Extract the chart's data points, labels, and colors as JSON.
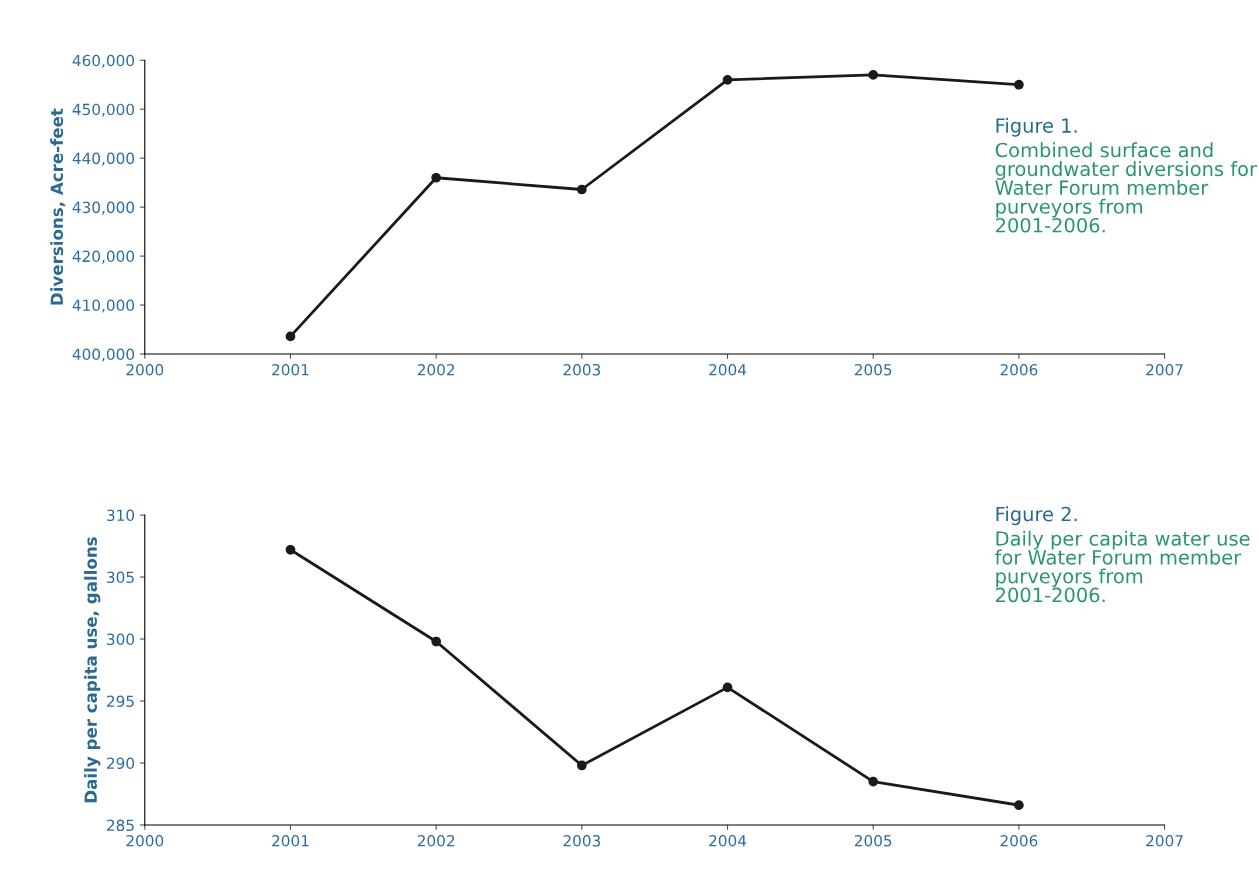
{
  "chart_data": [
    {
      "type": "line",
      "ylabel": "Diversions, Acre-feet",
      "x": [
        2001,
        2002,
        2003,
        2004,
        2005,
        2006
      ],
      "series": [
        {
          "color": "#1a1a1a",
          "values": [
            403600,
            436000,
            433600,
            456000,
            457000,
            455000
          ]
        }
      ],
      "marker": "circle",
      "line_style": "solid",
      "grid": false,
      "xlim": [
        2000,
        2007
      ],
      "xticks": [
        2000,
        2001,
        2002,
        2003,
        2004,
        2005,
        2006,
        2007
      ],
      "ylim": [
        400000,
        460000
      ],
      "yticks": [
        {
          "value": 400000,
          "label": "400,000"
        },
        {
          "value": 410000,
          "label": "410,000"
        },
        {
          "value": 420000,
          "label": "420,000"
        },
        {
          "value": 430000,
          "label": "430,000"
        },
        {
          "value": 440000,
          "label": "440,000"
        },
        {
          "value": 450000,
          "label": "450,000"
        },
        {
          "value": 460000,
          "label": "460,000"
        }
      ],
      "annotations": [
        "Figure 1.",
        "Combined surface and groundwater diversions for Water Forum member purveyors from 2001-2006."
      ]
    },
    {
      "type": "line",
      "ylabel": "Daily per capita use, gallons",
      "x": [
        2001,
        2002,
        2003,
        2004,
        2005,
        2006
      ],
      "series": [
        {
          "color": "#1a1a1a",
          "values": [
            307.2,
            299.8,
            289.8,
            296.1,
            288.5,
            286.6
          ]
        }
      ],
      "marker": "circle",
      "line_style": "solid",
      "grid": false,
      "xlim": [
        2000,
        2007
      ],
      "xticks": [
        2000,
        2001,
        2002,
        2003,
        2004,
        2005,
        2006,
        2007
      ],
      "ylim": [
        285,
        310
      ],
      "yticks": [
        285,
        290,
        295,
        300,
        305,
        310
      ],
      "annotations": [
        "Figure 2.",
        "Daily per capita water use for Water Forum member purveyors from 2001-2006."
      ]
    }
  ]
}
